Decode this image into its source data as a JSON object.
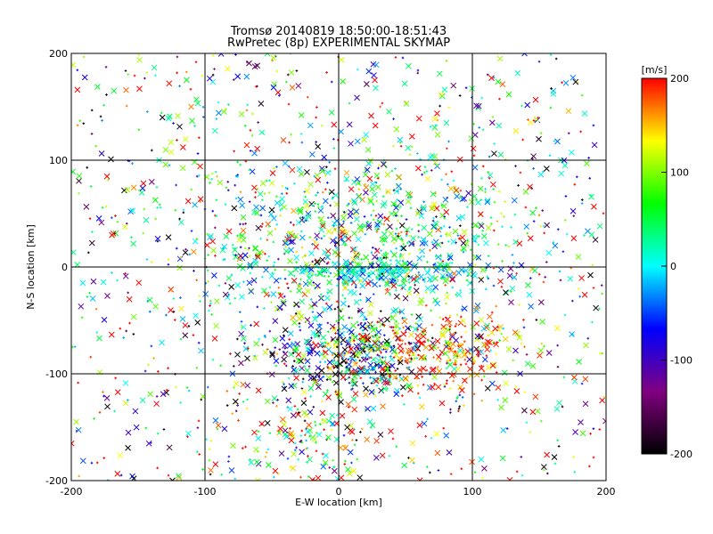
{
  "chart_data": {
    "type": "scatter",
    "title": "Tromsø 20140819 18:50:00-18:51:43",
    "subtitle": "RwPretec (8p) EXPERIMENTAL SKYMAP",
    "xlabel": "E-W location [km]",
    "ylabel": "N-S location [km]",
    "xlim": [
      -200,
      200
    ],
    "ylim": [
      -200,
      200
    ],
    "x_ticks": [
      -200,
      -100,
      0,
      100,
      200
    ],
    "y_ticks": [
      -200,
      -100,
      0,
      100,
      200
    ],
    "x_tick_labels": [
      "-200",
      "-100",
      "0",
      "100",
      "200"
    ],
    "y_tick_labels": [
      "-200",
      "-100",
      "0",
      "100",
      "200"
    ],
    "grid": true,
    "gridlines": [
      -100,
      0,
      100
    ],
    "markers": [
      "x",
      "+"
    ],
    "colorbar": {
      "label": "[m/s]",
      "min": -200,
      "max": 200,
      "ticks": [
        200,
        100,
        0,
        -100,
        -200
      ],
      "tick_labels": [
        "200",
        "100",
        "0",
        "-100",
        "-200"
      ],
      "colors": [
        "#000000",
        "#800080",
        "#0000ff",
        "#00ffff",
        "#00ff00",
        "#ffff00",
        "#ff0000"
      ]
    },
    "clusters": [
      {
        "cx": 10,
        "cy": 30,
        "sx": 70,
        "sy": 45,
        "n": 900,
        "vmean": 40,
        "vsd": 90
      },
      {
        "cx": 40,
        "cy": -5,
        "sx": 40,
        "sy": 6,
        "n": 220,
        "vmean": 0,
        "vsd": 40
      },
      {
        "cx": 10,
        "cy": -80,
        "sx": 35,
        "sy": 22,
        "n": 500,
        "vmean": -20,
        "vsd": 150
      },
      {
        "cx": 80,
        "cy": -80,
        "sx": 30,
        "sy": 20,
        "n": 250,
        "vmean": 170,
        "vsd": 60
      },
      {
        "cx": -20,
        "cy": -160,
        "sx": 30,
        "sy": 20,
        "n": 130,
        "vmean": 90,
        "vsd": 110
      },
      {
        "cx": 0,
        "cy": 0,
        "sx": 200,
        "sy": 200,
        "n": 900,
        "vmean": 20,
        "vsd": 170
      }
    ]
  }
}
